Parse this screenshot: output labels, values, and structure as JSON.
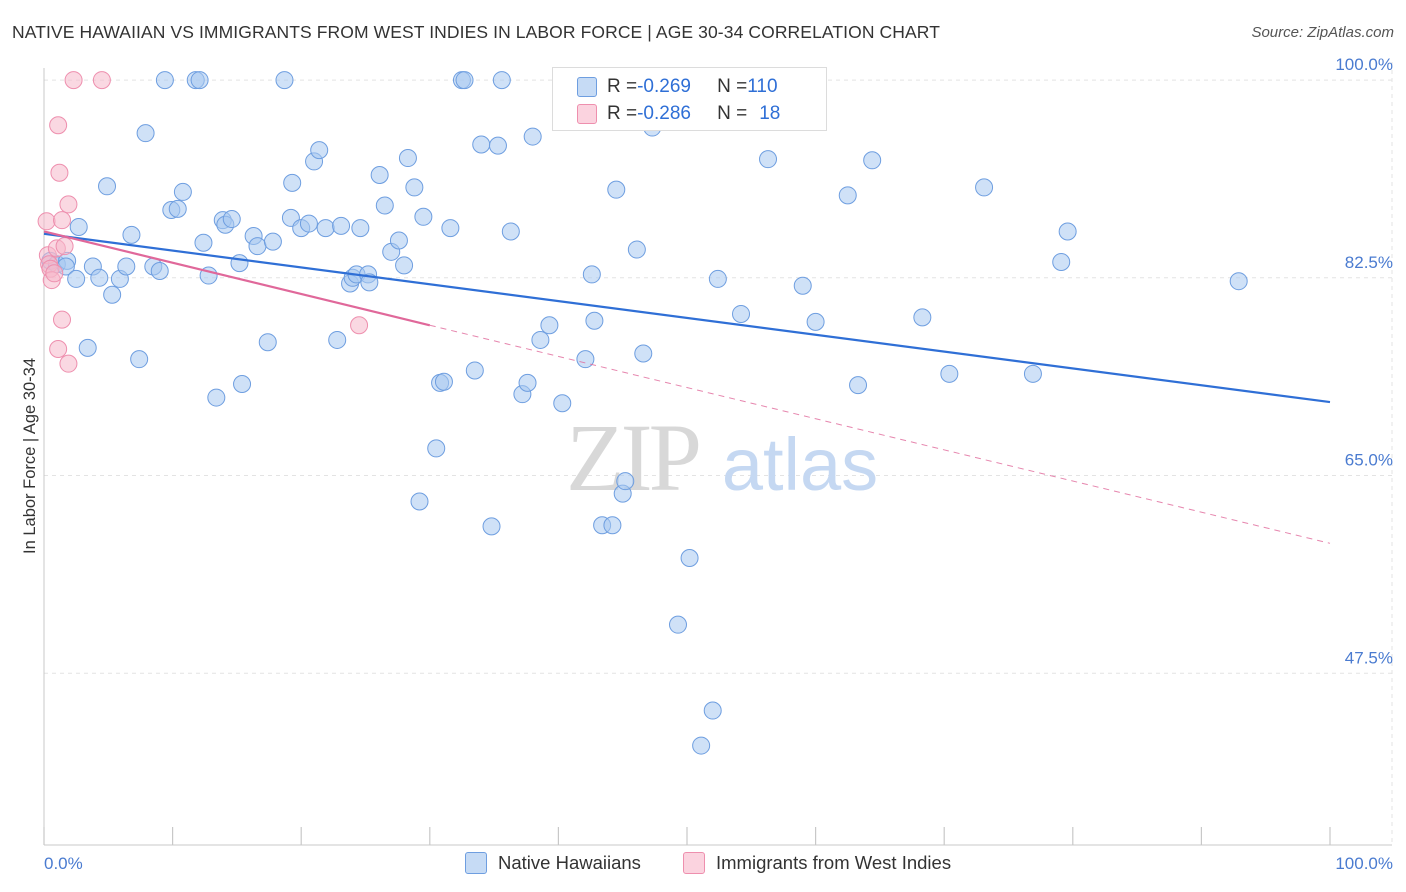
{
  "header": {
    "title": "NATIVE HAWAIIAN VS IMMIGRANTS FROM WEST INDIES IN LABOR FORCE | AGE 30-34 CORRELATION CHART",
    "source": "Source: ZipAtlas.com"
  },
  "watermark": {
    "zip": "ZIP",
    "atlas": "atlas"
  },
  "legend": {
    "rows": [
      {
        "r_label": "R = ",
        "r_value": "-0.269",
        "n_label": "N = ",
        "n_value": "110",
        "color": "#a8c8f0"
      },
      {
        "r_label": "R = ",
        "r_value": "-0.286",
        "n_label": "N = ",
        "n_value": "18",
        "color": "#f6b8cb"
      }
    ]
  },
  "bottom_legend": {
    "items": [
      {
        "label": "Native Hawaiians",
        "color": "#a8c8f0"
      },
      {
        "label": "Immigrants from West Indies",
        "color": "#f6b8cb"
      }
    ]
  },
  "colors": {
    "blue_fill": "#a8c8f0",
    "blue_stroke": "#6e9ee0",
    "blue_line": "#2f6fd6",
    "pink_fill": "#f6b8cb",
    "pink_stroke": "#ee8fae",
    "pink_line": "#e0689a",
    "grid": "#e3e3e3",
    "tick_text": "#4a7bd0"
  },
  "chart_data": {
    "type": "scatter",
    "title": "NATIVE HAWAIIAN VS IMMIGRANTS FROM WEST INDIES IN LABOR FORCE | AGE 30-34 CORRELATION CHART",
    "xlabel": "",
    "ylabel": "In Labor Force | Age 30-34",
    "x_tick_labels": [
      "0.0%",
      "100.0%"
    ],
    "y_tick_labels": [
      "100.0%",
      "82.5%",
      "65.0%",
      "47.5%"
    ],
    "y_ticks": [
      100.0,
      82.5,
      65.0,
      47.5
    ],
    "xlim": [
      0,
      100
    ],
    "ylim": [
      32.3,
      101.6
    ],
    "grid": true,
    "legend_placement": "bottom",
    "series": [
      {
        "name": "Native Hawaiians",
        "r": -0.269,
        "n": 110,
        "trend": {
          "x0": 0,
          "y0": 86.4,
          "x1": 100,
          "y1": 71.5,
          "style": "solid"
        },
        "points": [
          [
            0.5,
            84.0
          ],
          [
            1.0,
            83.7
          ],
          [
            1.8,
            84.0
          ],
          [
            1.7,
            83.5
          ],
          [
            2.5,
            82.4
          ],
          [
            2.7,
            87.0
          ],
          [
            3.4,
            76.3
          ],
          [
            3.8,
            83.5
          ],
          [
            4.3,
            82.5
          ],
          [
            4.9,
            90.6
          ],
          [
            5.3,
            81.0
          ],
          [
            5.9,
            82.4
          ],
          [
            6.4,
            83.5
          ],
          [
            6.8,
            86.3
          ],
          [
            7.4,
            75.3
          ],
          [
            7.9,
            95.3
          ],
          [
            8.5,
            83.5
          ],
          [
            9.0,
            83.1
          ],
          [
            9.4,
            100.0
          ],
          [
            9.9,
            88.5
          ],
          [
            10.4,
            88.6
          ],
          [
            10.8,
            90.1
          ],
          [
            11.8,
            100.0
          ],
          [
            12.1,
            100.0
          ],
          [
            12.4,
            85.6
          ],
          [
            12.8,
            82.7
          ],
          [
            13.4,
            71.9
          ],
          [
            13.9,
            87.6
          ],
          [
            14.1,
            87.2
          ],
          [
            14.6,
            87.7
          ],
          [
            15.2,
            83.8
          ],
          [
            15.4,
            73.1
          ],
          [
            16.3,
            86.2
          ],
          [
            16.6,
            85.3
          ],
          [
            17.4,
            76.8
          ],
          [
            17.8,
            85.7
          ],
          [
            18.7,
            100.0
          ],
          [
            19.2,
            87.8
          ],
          [
            19.3,
            90.9
          ],
          [
            20.0,
            86.9
          ],
          [
            20.6,
            87.3
          ],
          [
            21.0,
            92.8
          ],
          [
            21.4,
            93.8
          ],
          [
            21.9,
            86.9
          ],
          [
            22.8,
            77.0
          ],
          [
            23.1,
            87.1
          ],
          [
            23.8,
            82.0
          ],
          [
            24.0,
            82.5
          ],
          [
            24.3,
            82.8
          ],
          [
            24.6,
            86.9
          ],
          [
            25.2,
            82.8
          ],
          [
            25.3,
            82.1
          ],
          [
            26.1,
            91.6
          ],
          [
            26.5,
            88.9
          ],
          [
            27.0,
            84.8
          ],
          [
            27.6,
            85.8
          ],
          [
            28.0,
            83.6
          ],
          [
            28.3,
            93.1
          ],
          [
            28.8,
            90.5
          ],
          [
            29.5,
            87.9
          ],
          [
            30.5,
            67.4
          ],
          [
            30.8,
            73.2
          ],
          [
            31.1,
            73.3
          ],
          [
            31.6,
            86.9
          ],
          [
            29.2,
            62.7
          ],
          [
            32.5,
            100.0
          ],
          [
            32.7,
            100.0
          ],
          [
            33.5,
            74.3
          ],
          [
            34.0,
            94.3
          ],
          [
            34.8,
            60.5
          ],
          [
            35.3,
            94.2
          ],
          [
            35.6,
            100.0
          ],
          [
            36.3,
            86.6
          ],
          [
            37.2,
            72.2
          ],
          [
            37.6,
            73.2
          ],
          [
            38.0,
            95.0
          ],
          [
            38.6,
            77.0
          ],
          [
            39.3,
            78.3
          ],
          [
            40.3,
            71.4
          ],
          [
            42.1,
            75.3
          ],
          [
            42.6,
            82.8
          ],
          [
            42.8,
            78.7
          ],
          [
            43.4,
            60.6
          ],
          [
            44.2,
            60.6
          ],
          [
            44.5,
            90.3
          ],
          [
            45.0,
            63.4
          ],
          [
            45.2,
            64.5
          ],
          [
            46.1,
            85.0
          ],
          [
            46.6,
            75.8
          ],
          [
            47.3,
            95.8
          ],
          [
            49.3,
            51.8
          ],
          [
            50.2,
            57.7
          ],
          [
            51.1,
            41.1
          ],
          [
            52.0,
            44.2
          ],
          [
            52.4,
            82.4
          ],
          [
            54.2,
            79.3
          ],
          [
            56.3,
            93.0
          ],
          [
            57.2,
            100.0
          ],
          [
            59.0,
            81.8
          ],
          [
            60.0,
            78.6
          ],
          [
            62.5,
            89.8
          ],
          [
            63.3,
            73.0
          ],
          [
            64.4,
            92.9
          ],
          [
            68.3,
            79.0
          ],
          [
            70.4,
            74.0
          ],
          [
            73.1,
            90.5
          ],
          [
            76.9,
            74.0
          ],
          [
            79.1,
            83.9
          ],
          [
            79.6,
            86.6
          ],
          [
            92.9,
            82.2
          ]
        ]
      },
      {
        "name": "Immigrants from West Indies",
        "r": -0.286,
        "n": 18,
        "trend": {
          "x0": 0,
          "y0": 86.6,
          "x1": 30,
          "y1": 78.3,
          "dash_to_x": 100,
          "dash_to_y": 59.0,
          "style": "solid-then-dashed"
        },
        "points": [
          [
            0.2,
            87.5
          ],
          [
            0.3,
            84.5
          ],
          [
            0.4,
            83.7
          ],
          [
            0.5,
            83.3
          ],
          [
            0.6,
            82.3
          ],
          [
            0.8,
            82.9
          ],
          [
            1.0,
            85.1
          ],
          [
            1.1,
            76.2
          ],
          [
            1.1,
            96.0
          ],
          [
            1.2,
            91.8
          ],
          [
            1.4,
            87.6
          ],
          [
            1.4,
            78.8
          ],
          [
            1.6,
            85.3
          ],
          [
            1.9,
            89.0
          ],
          [
            1.9,
            74.9
          ],
          [
            2.3,
            100.0
          ],
          [
            4.5,
            100.0
          ],
          [
            24.5,
            78.3
          ]
        ]
      }
    ]
  }
}
